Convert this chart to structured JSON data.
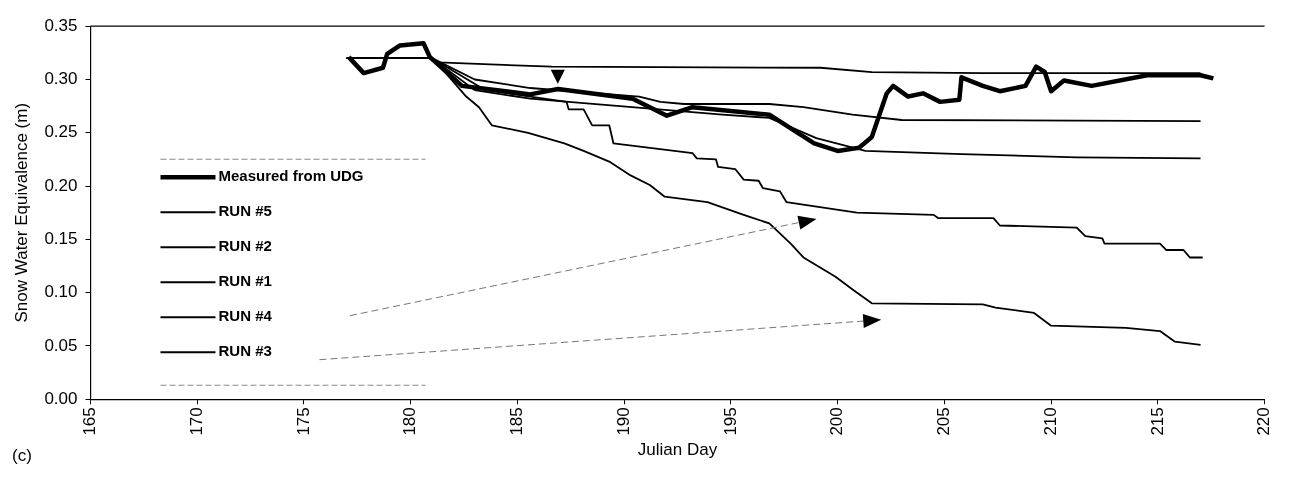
{
  "chart_data": {
    "type": "line",
    "xlabel": "Julian Day",
    "ylabel": "Snow Water Equivalence (m)",
    "annotations": [
      "(c)"
    ],
    "xlim": [
      165,
      220
    ],
    "xticks": [
      165,
      170,
      175,
      180,
      185,
      190,
      195,
      200,
      205,
      210,
      215,
      220
    ],
    "ylim": [
      0,
      0.35
    ],
    "yticks": [
      {
        "value": 0,
        "label": "0.00"
      },
      {
        "value": 0.05,
        "label": "0.05"
      },
      {
        "value": 0.1,
        "label": "0.10"
      },
      {
        "value": 0.15,
        "label": "0.15"
      },
      {
        "value": 0.2,
        "label": "0.20"
      },
      {
        "value": 0.25,
        "label": "0.25"
      },
      {
        "value": 0.3,
        "label": "0.30"
      },
      {
        "value": 0.35,
        "label": "0.35"
      }
    ],
    "grid": false,
    "legend": "bottom left",
    "marker": "none",
    "line_style": "solid",
    "series": [
      {
        "name": "Measured from UDG",
        "color": "#000000",
        "x": [
          177.1,
          177.8,
          178.7,
          178.9,
          179.5,
          180.6,
          180.9,
          182.4,
          185.6,
          186.9,
          190.4,
          192.0,
          193.2,
          196.8,
          198.9,
          200.0,
          201.0,
          201.6,
          202.3,
          202.6,
          203.3,
          204.0,
          204.8,
          205.7,
          205.8,
          206.8,
          207.6,
          208.8,
          209.3,
          209.7,
          210.0,
          210.6,
          211.9,
          214.5,
          217.0,
          217.6
        ],
        "values": [
          0.321,
          0.306,
          0.311,
          0.324,
          0.332,
          0.334,
          0.321,
          0.294,
          0.286,
          0.291,
          0.282,
          0.266,
          0.274,
          0.267,
          0.24,
          0.233,
          0.236,
          0.246,
          0.287,
          0.294,
          0.284,
          0.287,
          0.279,
          0.281,
          0.302,
          0.294,
          0.289,
          0.294,
          0.312,
          0.307,
          0.289,
          0.299,
          0.294,
          0.304,
          0.304,
          0.301
        ]
      },
      {
        "name": "RUN #5",
        "color": "#000000",
        "x": [
          177,
          181,
          181.3,
          186.6,
          199.2,
          201.6,
          206.8,
          217
        ],
        "values": [
          0.32,
          0.32,
          0.316,
          0.312,
          0.311,
          0.307,
          0.306,
          0.306
        ]
      },
      {
        "name": "RUN #2",
        "color": "#000000",
        "x": [
          177,
          181,
          183,
          185.6,
          190.7,
          191.7,
          192.8,
          196.8,
          198.4,
          200.7,
          203,
          217
        ],
        "values": [
          0.32,
          0.32,
          0.3,
          0.292,
          0.284,
          0.279,
          0.277,
          0.277,
          0.274,
          0.267,
          0.262,
          0.261
        ]
      },
      {
        "name": "RUN #1",
        "color": "#000000",
        "x": [
          177,
          181,
          183,
          185.6,
          187.4,
          194.6,
          196.8,
          199,
          201.3,
          205.8,
          211.2,
          217
        ],
        "values": [
          0.32,
          0.32,
          0.29,
          0.282,
          0.279,
          0.267,
          0.264,
          0.245,
          0.233,
          0.23,
          0.227,
          0.226
        ]
      },
      {
        "name": "RUN #4",
        "color": "#000000",
        "x": [
          177,
          181,
          183.5,
          187.3,
          187.4,
          188.1,
          188.5,
          189.3,
          189.5,
          193.2,
          193.4,
          194.3,
          194.4,
          195.2,
          195.6,
          196.3,
          196.5,
          197.3,
          197.6,
          200.9,
          204.5,
          204.7,
          207.3,
          207.6,
          211.2,
          211.6,
          212.4,
          212.5,
          215.1,
          215.4,
          216.2,
          216.5,
          217.1
        ],
        "values": [
          0.32,
          0.32,
          0.29,
          0.279,
          0.272,
          0.272,
          0.257,
          0.257,
          0.24,
          0.231,
          0.226,
          0.225,
          0.218,
          0.216,
          0.206,
          0.205,
          0.198,
          0.195,
          0.185,
          0.175,
          0.173,
          0.17,
          0.17,
          0.163,
          0.161,
          0.153,
          0.151,
          0.146,
          0.146,
          0.14,
          0.14,
          0.133,
          0.133
        ]
      },
      {
        "name": "RUN #3",
        "color": "#000000",
        "x": [
          177,
          181,
          181.3,
          182.6,
          183.2,
          183.8,
          185.5,
          187.2,
          188.1,
          189.3,
          190.3,
          191.2,
          191.9,
          193.9,
          195.6,
          196.8,
          197.8,
          198.4,
          199.9,
          200.7,
          201.6,
          206.8,
          207.4,
          209.2,
          210.0,
          213.5,
          215.1,
          215.8,
          217.0
        ],
        "values": [
          0.32,
          0.32,
          0.314,
          0.284,
          0.274,
          0.257,
          0.25,
          0.24,
          0.233,
          0.223,
          0.21,
          0.201,
          0.19,
          0.185,
          0.173,
          0.165,
          0.146,
          0.133,
          0.115,
          0.103,
          0.09,
          0.089,
          0.086,
          0.081,
          0.069,
          0.067,
          0.064,
          0.054,
          0.051
        ]
      }
    ]
  }
}
